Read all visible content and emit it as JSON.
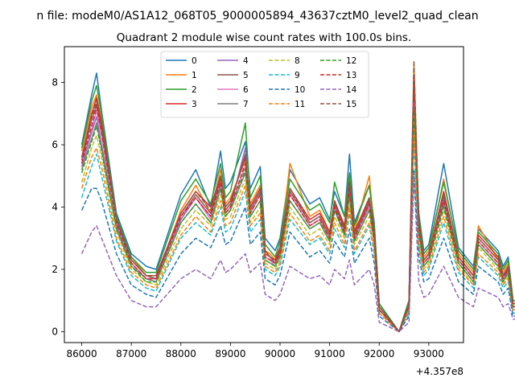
{
  "figure": {
    "suptitle": "n file: modeM0/AS1A12_068T05_9000005894_43637cztM0_level2_quad_clean",
    "title": "Quadrant 2 module wise count rates with 100.0s bins.",
    "offset_label": "+4.357e8"
  },
  "chart_data": {
    "type": "line",
    "title": "Quadrant 2 module wise count rates with 100.0s bins.",
    "xlabel": "",
    "ylabel": "",
    "xlim": [
      85650,
      93700
    ],
    "ylim": [
      -0.35,
      9.15
    ],
    "x_tick_values": [
      86000,
      87000,
      88000,
      89000,
      90000,
      91000,
      92000,
      93000
    ],
    "x_tick_labels": [
      "86000",
      "87000",
      "88000",
      "89000",
      "90000",
      "91000",
      "92000",
      "93000"
    ],
    "y_tick_values": [
      0,
      2,
      4,
      6,
      8
    ],
    "y_tick_labels": [
      "0",
      "2",
      "4",
      "6",
      "8"
    ],
    "x_offset": 435700000,
    "grid": false,
    "legend_position": "upper-center",
    "legend_columns": 4,
    "x_start": 86000,
    "x_step": 100,
    "anchor_index": [
      0,
      2,
      3,
      4,
      7,
      10,
      13,
      15,
      20,
      23,
      26,
      28,
      29,
      30,
      33,
      34,
      36,
      37,
      38,
      39,
      40,
      42,
      46,
      48,
      50,
      51,
      53,
      54,
      55,
      58,
      59,
      60,
      64,
      66,
      67,
      68,
      69,
      70,
      73,
      76,
      79,
      80,
      84,
      85,
      86,
      87,
      90,
      91,
      92,
      94
    ],
    "series": [
      {
        "name": "0",
        "color": "#1f77b4",
        "dash": "solid",
        "values": [
          6.0,
          7.6,
          8.3,
          7.1,
          3.8,
          2.5,
          2.1,
          2.0,
          4.4,
          5.2,
          4.0,
          5.8,
          4.6,
          4.8,
          6.1,
          4.6,
          5.3,
          3.0,
          2.8,
          2.6,
          3.0,
          5.2,
          4.1,
          4.3,
          3.6,
          4.5,
          3.7,
          5.7,
          3.5,
          4.7,
          3.5,
          0.9,
          0.0,
          1.0,
          7.7,
          3.8,
          2.6,
          2.8,
          5.4,
          2.7,
          2.1,
          3.3,
          2.6,
          2.1,
          2.4,
          1.0,
          0.9,
          0.9,
          0.9,
          0.9
        ]
      },
      {
        "name": "1",
        "color": "#ff7f0e",
        "dash": "solid",
        "values": [
          5.8,
          7.2,
          7.6,
          6.8,
          3.6,
          2.4,
          1.8,
          1.7,
          3.9,
          4.7,
          3.8,
          5.2,
          4.1,
          4.3,
          5.5,
          4.1,
          4.7,
          2.6,
          2.5,
          2.3,
          2.7,
          5.4,
          3.7,
          3.9,
          3.2,
          4.1,
          3.4,
          5.0,
          3.2,
          5.0,
          3.3,
          0.8,
          0.0,
          0.9,
          8.6,
          3.6,
          2.4,
          2.6,
          4.9,
          2.5,
          1.9,
          3.4,
          2.3,
          1.9,
          2.2,
          0.9,
          0.9,
          0.9,
          0.9,
          0.9
        ]
      },
      {
        "name": "2",
        "color": "#2ca02c",
        "dash": "solid",
        "values": [
          5.9,
          7.4,
          7.9,
          7.0,
          3.7,
          2.4,
          1.9,
          1.9,
          4.2,
          4.9,
          4.1,
          5.4,
          4.3,
          4.5,
          6.7,
          4.3,
          5.0,
          2.8,
          2.6,
          2.4,
          2.9,
          4.9,
          3.9,
          4.1,
          3.5,
          4.8,
          3.7,
          5.1,
          3.4,
          4.7,
          3.4,
          0.9,
          0.0,
          1.0,
          7.8,
          3.7,
          2.5,
          2.7,
          4.8,
          2.6,
          2.0,
          3.2,
          2.5,
          2.0,
          2.3,
          1.0,
          0.9,
          0.9,
          0.9,
          0.9
        ]
      },
      {
        "name": "3",
        "color": "#d62728",
        "dash": "solid",
        "values": [
          5.6,
          7.0,
          7.5,
          6.7,
          3.6,
          2.3,
          1.8,
          1.8,
          3.8,
          4.5,
          4.0,
          5.0,
          4.0,
          4.2,
          5.6,
          4.0,
          4.6,
          2.6,
          2.4,
          2.3,
          2.7,
          4.6,
          3.6,
          3.8,
          3.2,
          4.2,
          3.4,
          4.8,
          3.2,
          4.3,
          3.2,
          0.8,
          0.0,
          0.9,
          8.0,
          3.5,
          2.3,
          2.5,
          4.5,
          2.4,
          1.8,
          3.1,
          2.4,
          1.8,
          2.1,
          0.9,
          0.9,
          0.9,
          0.9,
          0.9
        ]
      },
      {
        "name": "4",
        "color": "#9467bd",
        "dash": "solid",
        "values": [
          5.3,
          6.4,
          6.9,
          6.0,
          3.4,
          2.2,
          1.7,
          1.7,
          3.6,
          4.3,
          3.7,
          4.7,
          3.8,
          4.0,
          5.9,
          3.8,
          4.4,
          2.4,
          2.3,
          2.2,
          2.5,
          4.4,
          3.4,
          3.6,
          3.0,
          4.0,
          3.2,
          4.6,
          3.0,
          4.1,
          3.0,
          0.7,
          0.0,
          0.8,
          7.3,
          3.3,
          2.2,
          2.4,
          4.3,
          2.3,
          1.7,
          2.9,
          2.2,
          1.7,
          2.0,
          0.8,
          0.8,
          0.8,
          0.8,
          0.8
        ]
      },
      {
        "name": "5",
        "color": "#8c564b",
        "dash": "solid",
        "values": [
          5.5,
          6.8,
          7.3,
          6.5,
          3.5,
          2.3,
          1.8,
          1.7,
          3.7,
          4.4,
          3.8,
          4.9,
          3.9,
          4.1,
          5.7,
          3.9,
          4.5,
          2.5,
          2.4,
          2.2,
          2.6,
          4.5,
          3.5,
          3.7,
          3.1,
          4.1,
          3.3,
          4.7,
          3.1,
          4.2,
          3.1,
          0.8,
          0.0,
          0.9,
          7.9,
          3.4,
          2.3,
          2.5,
          4.4,
          2.4,
          1.8,
          3.0,
          2.3,
          1.8,
          2.0,
          0.9,
          0.9,
          0.9,
          0.9,
          0.9
        ]
      },
      {
        "name": "6",
        "color": "#e377c2",
        "dash": "solid",
        "values": [
          5.4,
          6.5,
          7.1,
          6.3,
          3.5,
          2.2,
          1.7,
          1.6,
          3.7,
          4.3,
          3.6,
          4.8,
          3.8,
          4.0,
          5.3,
          3.8,
          4.4,
          2.4,
          2.3,
          2.1,
          2.5,
          4.4,
          3.4,
          3.6,
          3.0,
          4.0,
          3.2,
          4.5,
          3.0,
          4.0,
          3.0,
          0.7,
          0.0,
          0.8,
          7.4,
          3.3,
          2.2,
          2.4,
          4.2,
          2.3,
          1.7,
          2.9,
          2.2,
          1.7,
          1.9,
          0.8,
          0.8,
          0.8,
          0.8,
          0.8
        ]
      },
      {
        "name": "7",
        "color": "#7f7f7f",
        "dash": "solid",
        "values": [
          5.2,
          6.2,
          6.7,
          5.9,
          3.3,
          2.1,
          1.7,
          1.6,
          3.5,
          4.1,
          3.5,
          4.6,
          3.7,
          3.9,
          5.1,
          3.7,
          4.2,
          2.3,
          2.2,
          2.1,
          2.4,
          4.2,
          3.3,
          3.5,
          2.9,
          3.9,
          3.1,
          4.4,
          2.9,
          3.9,
          2.9,
          0.7,
          0.0,
          0.8,
          7.2,
          3.2,
          2.1,
          2.3,
          4.1,
          2.2,
          1.6,
          2.8,
          2.1,
          1.6,
          1.9,
          0.8,
          0.8,
          0.8,
          0.8,
          0.8
        ]
      },
      {
        "name": "8",
        "color": "#bcbd22",
        "dash": "dashed",
        "values": [
          4.8,
          5.9,
          6.3,
          5.6,
          3.2,
          2.0,
          1.6,
          1.5,
          3.3,
          3.9,
          3.4,
          4.4,
          3.6,
          3.7,
          4.9,
          3.5,
          4.0,
          2.2,
          2.1,
          2.0,
          2.3,
          4.0,
          3.1,
          3.3,
          2.8,
          3.7,
          3.0,
          4.2,
          2.8,
          3.7,
          2.8,
          0.7,
          0.0,
          0.7,
          6.9,
          3.0,
          2.0,
          2.2,
          3.9,
          2.1,
          1.5,
          2.7,
          2.0,
          1.5,
          1.8,
          0.7,
          0.7,
          0.7,
          0.7,
          0.7
        ]
      },
      {
        "name": "9",
        "color": "#17becf",
        "dash": "dashed",
        "values": [
          4.3,
          5.3,
          5.7,
          5.0,
          2.9,
          1.8,
          1.4,
          1.3,
          3.0,
          3.5,
          3.1,
          4.0,
          3.2,
          3.3,
          4.5,
          3.2,
          3.6,
          2.0,
          1.9,
          1.8,
          2.1,
          3.6,
          2.8,
          3.0,
          2.5,
          3.3,
          2.7,
          3.8,
          2.5,
          3.4,
          2.5,
          0.6,
          0.0,
          0.6,
          6.1,
          2.7,
          1.8,
          2.0,
          3.5,
          1.9,
          1.4,
          2.4,
          1.8,
          1.4,
          1.6,
          0.6,
          0.6,
          0.6,
          0.6,
          0.6
        ]
      },
      {
        "name": "10",
        "color": "#1f77b4",
        "dash": "dashed",
        "values": [
          3.9,
          4.6,
          4.6,
          4.2,
          2.5,
          1.5,
          1.2,
          1.1,
          2.5,
          3.0,
          2.7,
          3.4,
          2.8,
          2.9,
          4.0,
          2.8,
          3.2,
          1.7,
          1.6,
          1.5,
          1.8,
          3.2,
          2.4,
          2.6,
          2.2,
          2.9,
          2.4,
          3.3,
          2.2,
          3.0,
          2.2,
          0.5,
          0.0,
          0.5,
          5.2,
          2.4,
          1.6,
          1.7,
          3.0,
          1.6,
          1.2,
          2.1,
          1.6,
          1.2,
          1.4,
          0.5,
          0.5,
          0.5,
          0.5,
          0.5
        ]
      },
      {
        "name": "11",
        "color": "#ff7f0e",
        "dash": "dashed",
        "values": [
          4.6,
          5.6,
          5.9,
          5.3,
          3.0,
          1.9,
          1.5,
          1.4,
          3.1,
          3.7,
          3.2,
          4.2,
          3.4,
          3.5,
          4.7,
          3.4,
          3.8,
          2.1,
          2.0,
          1.9,
          2.2,
          3.8,
          2.9,
          3.1,
          2.6,
          3.5,
          2.8,
          4.0,
          2.6,
          3.5,
          2.6,
          0.6,
          0.0,
          0.7,
          6.5,
          2.8,
          1.9,
          2.1,
          3.7,
          2.0,
          1.5,
          2.5,
          1.9,
          1.5,
          1.7,
          0.7,
          0.7,
          0.7,
          0.7,
          0.7
        ]
      },
      {
        "name": "12",
        "color": "#2ca02c",
        "dash": "dashed",
        "values": [
          5.1,
          6.1,
          6.6,
          5.8,
          3.3,
          2.1,
          1.6,
          1.6,
          3.5,
          4.1,
          3.5,
          4.6,
          3.7,
          3.9,
          5.2,
          3.7,
          4.2,
          2.3,
          2.2,
          2.1,
          2.4,
          4.2,
          3.3,
          3.5,
          2.9,
          3.9,
          3.1,
          4.4,
          2.9,
          3.9,
          2.9,
          0.7,
          0.0,
          0.8,
          7.1,
          3.2,
          2.1,
          2.3,
          4.0,
          2.2,
          1.6,
          2.8,
          2.1,
          1.6,
          1.9,
          0.8,
          0.8,
          0.8,
          0.8,
          0.8
        ]
      },
      {
        "name": "13",
        "color": "#d62728",
        "dash": "dashed",
        "values": [
          5.4,
          6.6,
          7.2,
          6.4,
          3.5,
          2.2,
          1.7,
          1.7,
          3.7,
          4.3,
          3.7,
          4.8,
          3.8,
          4.0,
          5.4,
          3.8,
          4.4,
          2.4,
          2.3,
          2.2,
          2.5,
          4.4,
          3.4,
          3.6,
          3.0,
          4.0,
          3.2,
          4.6,
          3.0,
          4.1,
          3.0,
          0.7,
          0.0,
          0.8,
          8.2,
          3.3,
          2.2,
          2.4,
          4.2,
          2.3,
          1.7,
          2.9,
          2.2,
          1.7,
          2.0,
          0.8,
          0.8,
          0.8,
          0.8,
          0.8
        ]
      },
      {
        "name": "14",
        "color": "#9467bd",
        "dash": "dashed",
        "values": [
          2.5,
          3.2,
          3.4,
          3.0,
          1.8,
          1.0,
          0.8,
          0.8,
          1.7,
          2.0,
          1.7,
          2.3,
          1.9,
          2.0,
          2.5,
          1.9,
          2.2,
          1.2,
          1.1,
          1.0,
          1.2,
          2.1,
          1.7,
          1.8,
          1.5,
          2.0,
          1.7,
          2.3,
          1.5,
          2.0,
          1.5,
          0.3,
          0.0,
          0.3,
          5.0,
          1.6,
          1.1,
          1.2,
          2.1,
          1.1,
          0.8,
          1.4,
          1.1,
          0.8,
          0.9,
          0.4,
          0.4,
          0.4,
          0.4,
          0.4
        ]
      },
      {
        "name": "15",
        "color": "#8c564b",
        "dash": "dashed",
        "values": [
          5.6,
          6.9,
          7.4,
          6.6,
          3.6,
          2.3,
          1.8,
          1.8,
          3.8,
          4.5,
          3.9,
          5.0,
          4.0,
          4.2,
          5.6,
          4.0,
          4.6,
          2.5,
          2.4,
          2.2,
          2.6,
          4.6,
          3.5,
          3.7,
          3.1,
          4.2,
          3.3,
          4.8,
          3.1,
          4.3,
          3.1,
          0.8,
          0.0,
          0.9,
          8.7,
          3.4,
          2.3,
          2.5,
          4.4,
          2.4,
          1.8,
          3.0,
          2.3,
          1.8,
          2.1,
          0.9,
          0.9,
          0.9,
          0.9,
          0.9
        ]
      }
    ]
  }
}
